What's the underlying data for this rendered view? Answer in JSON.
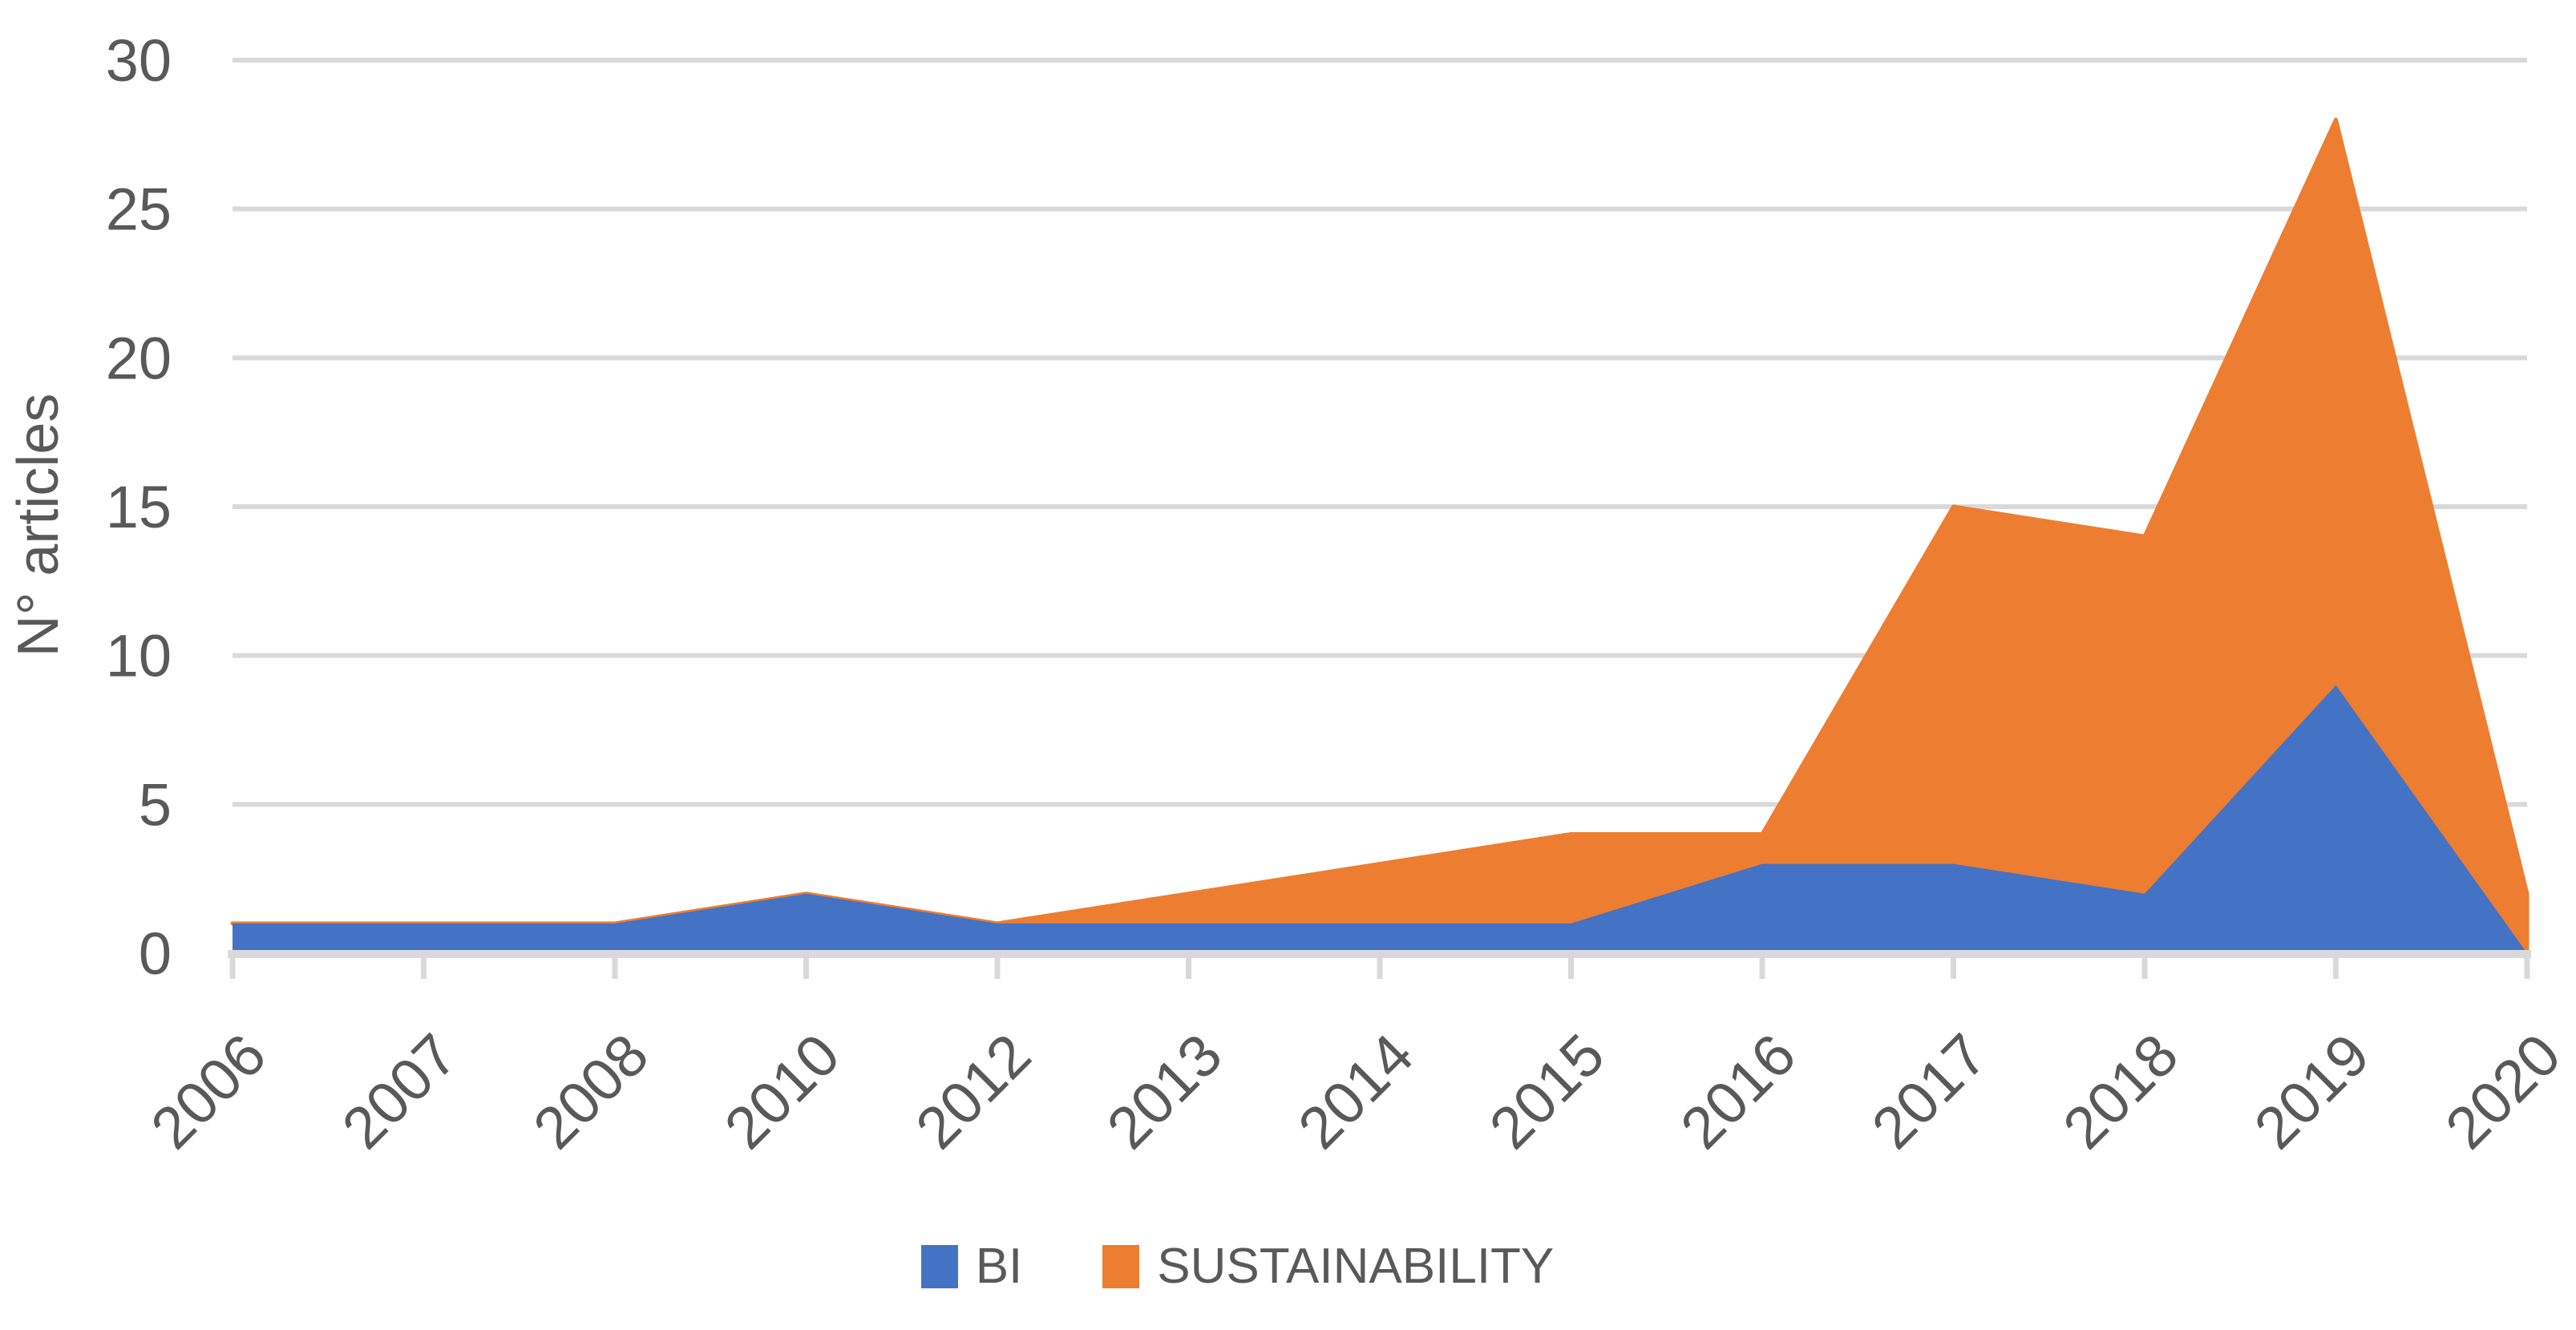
{
  "chart_data": {
    "type": "area",
    "stacked": true,
    "title": "",
    "xlabel": "",
    "ylabel": "N° articles",
    "ylim": [
      0,
      30
    ],
    "yticks": [
      0,
      5,
      10,
      15,
      20,
      25,
      30
    ],
    "grid": true,
    "legend_position": "bottom",
    "categories": [
      "2006",
      "2007",
      "2008",
      "2010",
      "2012",
      "2013",
      "2014",
      "2015",
      "2016",
      "2017",
      "2018",
      "2019",
      "2020"
    ],
    "series": [
      {
        "name": "BI",
        "color": "#4472C4",
        "values": [
          1,
          1,
          1,
          2,
          1,
          1,
          1,
          1,
          3,
          3,
          2,
          9,
          0
        ]
      },
      {
        "name": "SUSTAINABILITY",
        "color": "#ED7D31",
        "values": [
          0,
          0,
          0,
          0,
          0,
          1,
          2,
          3,
          1,
          12,
          12,
          19,
          2
        ]
      }
    ],
    "stacked_totals": [
      1,
      1,
      1,
      2,
      1,
      2,
      3,
      4,
      4,
      15,
      14,
      28,
      2
    ]
  },
  "style": {
    "axis_text_color": "#595959",
    "gridline_color": "#D9D9D9",
    "background_color": "#FFFFFF"
  }
}
